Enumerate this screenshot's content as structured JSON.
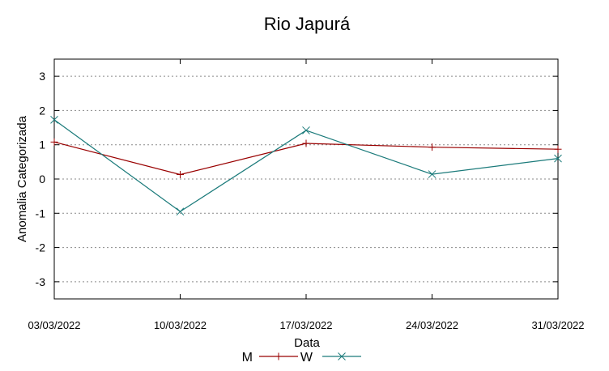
{
  "chart_data": {
    "type": "line",
    "title": "Rio Japurá",
    "xlabel": "Data",
    "ylabel": "Anomalia Categorizada",
    "categories": [
      "03/03/2022",
      "10/03/2022",
      "17/03/2022",
      "24/03/2022",
      "31/03/2022"
    ],
    "ylim": [
      -3.5,
      3.5
    ],
    "yticks": [
      -3,
      -2,
      -1,
      0,
      1,
      2,
      3
    ],
    "grid": true,
    "legend_position": "bottom-center",
    "series": [
      {
        "name": "M",
        "color": "#990000",
        "marker": "plus",
        "values": [
          1.08,
          0.13,
          1.04,
          0.93,
          0.87
        ]
      },
      {
        "name": "W",
        "color": "#1a7a7a",
        "marker": "cross",
        "values": [
          1.73,
          -0.95,
          1.42,
          0.14,
          0.6
        ]
      }
    ]
  }
}
